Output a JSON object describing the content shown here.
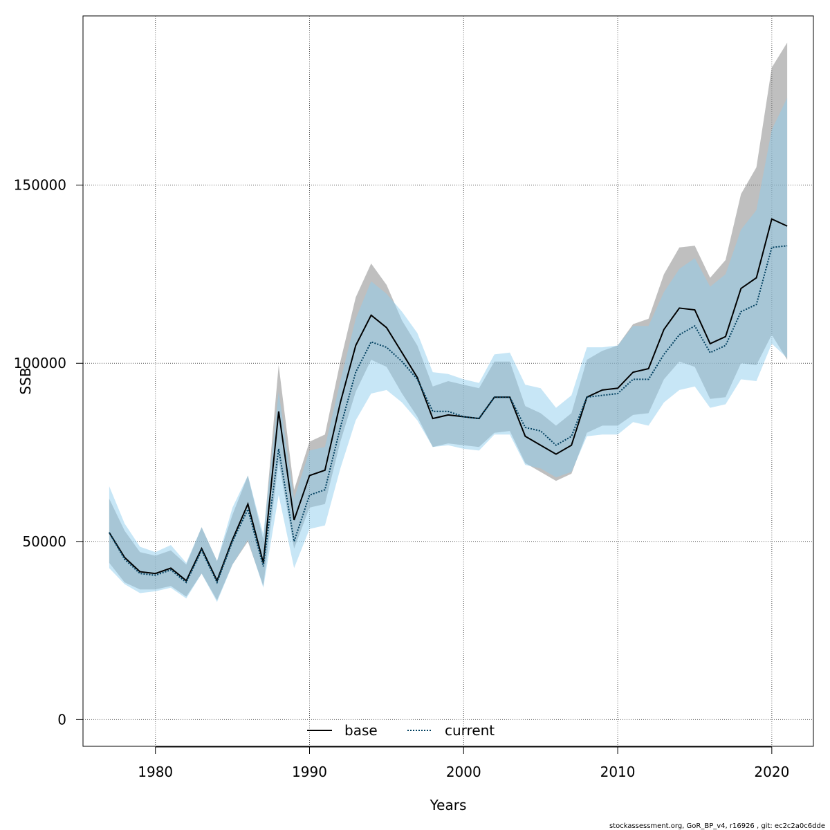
{
  "chart_data": {
    "type": "line",
    "xlabel": "Years",
    "ylabel": "SSB",
    "xlim": [
      1975.3,
      2022.7
    ],
    "ylim": [
      -7500,
      197500
    ],
    "x_ticks": [
      1980,
      1990,
      2000,
      2010,
      2020
    ],
    "y_ticks": [
      0,
      50000,
      100000,
      150000
    ],
    "grid": true,
    "legend_placement": "bottom",
    "years": [
      1977,
      1978,
      1979,
      1980,
      1981,
      1982,
      1983,
      1984,
      1985,
      1986,
      1987,
      1988,
      1989,
      1990,
      1991,
      1992,
      1993,
      1994,
      1995,
      1996,
      1997,
      1998,
      1999,
      2000,
      2001,
      2002,
      2003,
      2004,
      2005,
      2006,
      2007,
      2008,
      2009,
      2010,
      2011,
      2012,
      2013,
      2014,
      2015,
      2016,
      2017,
      2018,
      2019,
      2020,
      2021
    ],
    "series": [
      {
        "name": "base",
        "color": "#000000",
        "band_color": "#808080",
        "line_style": "solid",
        "values": [
          52500,
          45500,
          41500,
          41000,
          42500,
          39000,
          48000,
          39000,
          50500,
          60500,
          44000,
          86500,
          56000,
          68500,
          70000,
          89000,
          105000,
          113500,
          110000,
          103000,
          96000,
          84500,
          85500,
          85000,
          84500,
          90500,
          90500,
          79500,
          77000,
          74500,
          77000,
          90500,
          92500,
          93000,
          97500,
          98500,
          109500,
          115500,
          115000,
          105500,
          107500,
          121000,
          124000,
          140500,
          138500
        ],
        "lower": [
          44000,
          38500,
          36500,
          36500,
          37500,
          34500,
          41000,
          33500,
          43500,
          50000,
          37500,
          72500,
          48000,
          59500,
          60500,
          78000,
          92000,
          101000,
          99000,
          91500,
          85000,
          76500,
          77500,
          77000,
          76500,
          80500,
          81000,
          72000,
          69500,
          67000,
          69000,
          80500,
          82500,
          82500,
          85500,
          86000,
          95500,
          100500,
          99000,
          90000,
          90500,
          100000,
          99500,
          108000,
          101000
        ],
        "upper": [
          62000,
          53000,
          47000,
          46000,
          47500,
          43500,
          54000,
          44500,
          57500,
          68500,
          50500,
          99500,
          64500,
          78000,
          80000,
          100500,
          118500,
          128000,
          122000,
          112000,
          105000,
          93500,
          95000,
          94000,
          93000,
          100500,
          100500,
          88000,
          86000,
          82500,
          86000,
          101000,
          103500,
          105000,
          111000,
          112500,
          125000,
          132500,
          133000,
          124000,
          129000,
          147500,
          155000,
          183000,
          190000
        ]
      },
      {
        "name": "current",
        "color": "#003f5f",
        "band_color": "#8fcdee",
        "line_style": "dotted",
        "values": [
          52500,
          45000,
          41000,
          40500,
          42000,
          38500,
          47500,
          38500,
          50000,
          59000,
          43000,
          76000,
          50000,
          63000,
          64500,
          82000,
          97500,
          106000,
          104500,
          100500,
          95500,
          86500,
          86500,
          85000,
          84500,
          90500,
          90500,
          82000,
          81000,
          77000,
          79500,
          90500,
          91000,
          91500,
          95500,
          95500,
          102500,
          108000,
          110500,
          103000,
          105000,
          114500,
          116500,
          132500,
          133000
        ],
        "lower": [
          42500,
          38000,
          35500,
          36000,
          37000,
          34000,
          41000,
          33000,
          43500,
          50500,
          37000,
          63000,
          42500,
          53500,
          54500,
          70500,
          84000,
          91500,
          92500,
          89000,
          84000,
          76500,
          77000,
          76000,
          75500,
          80000,
          80000,
          71500,
          70500,
          68000,
          69500,
          79500,
          80000,
          80000,
          83500,
          82500,
          89000,
          92500,
          93500,
          87500,
          88500,
          95500,
          95000,
          105500,
          101500
        ],
        "upper": [
          65500,
          55000,
          48500,
          47000,
          49000,
          44000,
          54000,
          44500,
          59500,
          68500,
          52000,
          92000,
          62000,
          75500,
          76500,
          95000,
          112500,
          123000,
          119500,
          114500,
          108500,
          97500,
          97000,
          95500,
          94500,
          102500,
          103000,
          94000,
          93000,
          87500,
          91000,
          104500,
          104500,
          105000,
          110500,
          110500,
          120000,
          126500,
          129500,
          121500,
          125000,
          137500,
          143000,
          165500,
          174500
        ]
      }
    ],
    "footer": "stockassessment.org, GoR_BP_v4, r16926 , git: ec2c2a0c6dde"
  }
}
